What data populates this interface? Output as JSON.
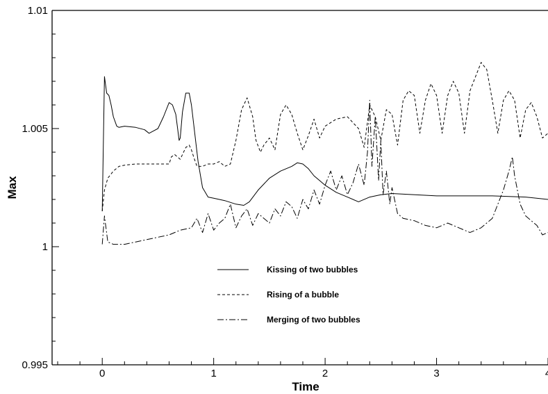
{
  "chart_data": {
    "type": "line",
    "xlabel": "Time",
    "ylabel": "Max",
    "xlim": [
      -0.45,
      4
    ],
    "ylim": [
      0.995,
      1.01
    ],
    "x_ticks": [
      0,
      1,
      2,
      3,
      4
    ],
    "x_tick_labels": [
      "0",
      "1",
      "2",
      "3",
      "4"
    ],
    "y_ticks": [
      0.995,
      1.0,
      1.005,
      1.01
    ],
    "y_tick_labels": [
      "0.995",
      "1",
      "1.005",
      "1.01"
    ],
    "grid": false,
    "legend_position": "center",
    "series": [
      {
        "name": "Kissing of two bubbles",
        "dash": "solid",
        "x": [
          0,
          0.02,
          0.04,
          0.06,
          0.08,
          0.1,
          0.13,
          0.15,
          0.2,
          0.3,
          0.38,
          0.42,
          0.46,
          0.5,
          0.55,
          0.6,
          0.63,
          0.66,
          0.69,
          0.7,
          0.72,
          0.75,
          0.78,
          0.8,
          0.83,
          0.86,
          0.9,
          0.95,
          1.0,
          1.05,
          1.1,
          1.2,
          1.27,
          1.32,
          1.4,
          1.5,
          1.6,
          1.7,
          1.75,
          1.8,
          1.85,
          1.9,
          1.95,
          2.0,
          2.1,
          2.2,
          2.3,
          2.4,
          2.5,
          2.6,
          3.0,
          3.5,
          3.8,
          4.0
        ],
        "values": [
          1.0015,
          1.0072,
          1.0065,
          1.0064,
          1.006,
          1.0055,
          1.0051,
          1.00505,
          1.0051,
          1.00505,
          1.00495,
          1.0048,
          1.0049,
          1.005,
          1.0055,
          1.0061,
          1.006,
          1.0056,
          1.0045,
          1.0046,
          1.0057,
          1.0065,
          1.0065,
          1.006,
          1.0048,
          1.0036,
          1.0025,
          1.0021,
          1.00205,
          1.002,
          1.00195,
          1.0018,
          1.00175,
          1.0019,
          1.0024,
          1.0029,
          1.0032,
          1.0034,
          1.00355,
          1.0035,
          1.0033,
          1.003,
          1.0028,
          1.0026,
          1.0023,
          1.0021,
          1.0019,
          1.0021,
          1.0022,
          1.00225,
          1.00215,
          1.00215,
          1.0021,
          1.002
        ]
      },
      {
        "name": "Rising of a bubble",
        "dash": "dashed",
        "x": [
          0,
          0.02,
          0.05,
          0.1,
          0.15,
          0.2,
          0.3,
          0.4,
          0.5,
          0.6,
          0.62,
          0.65,
          0.7,
          0.73,
          0.75,
          0.78,
          0.8,
          0.82,
          0.85,
          0.9,
          0.95,
          1.0,
          1.05,
          1.1,
          1.15,
          1.2,
          1.25,
          1.3,
          1.35,
          1.38,
          1.42,
          1.45,
          1.5,
          1.55,
          1.6,
          1.65,
          1.7,
          1.75,
          1.8,
          1.85,
          1.9,
          1.95,
          2.0,
          2.1,
          2.2,
          2.3,
          2.35,
          2.4,
          2.45,
          2.5,
          2.55,
          2.6,
          2.65,
          2.7,
          2.75,
          2.8,
          2.85,
          2.9,
          2.95,
          3.0,
          3.05,
          3.1,
          3.15,
          3.2,
          3.25,
          3.3,
          3.35,
          3.4,
          3.45,
          3.5,
          3.55,
          3.6,
          3.65,
          3.7,
          3.75,
          3.8,
          3.85,
          3.9,
          3.95,
          4.0
        ],
        "values": [
          1.0015,
          1.0024,
          1.0029,
          1.0032,
          1.0034,
          1.00345,
          1.0035,
          1.0035,
          1.0035,
          1.0035,
          1.0038,
          1.0039,
          1.0037,
          1.004,
          1.0042,
          1.0043,
          1.0041,
          1.0038,
          1.0034,
          1.0034,
          1.0035,
          1.0035,
          1.0036,
          1.0034,
          1.0035,
          1.0045,
          1.0058,
          1.0063,
          1.0055,
          1.0045,
          1.004,
          1.0043,
          1.0046,
          1.0041,
          1.0056,
          1.006,
          1.0056,
          1.0048,
          1.0041,
          1.0047,
          1.0054,
          1.0046,
          1.0051,
          1.0054,
          1.0055,
          1.005,
          1.0042,
          1.006,
          1.0055,
          1.0045,
          1.0058,
          1.0056,
          1.0043,
          1.0062,
          1.0066,
          1.0064,
          1.0048,
          1.0062,
          1.0069,
          1.0064,
          1.0048,
          1.0064,
          1.007,
          1.0065,
          1.0048,
          1.0066,
          1.0072,
          1.0078,
          1.0075,
          1.0062,
          1.0048,
          1.0062,
          1.0066,
          1.0062,
          1.0046,
          1.0058,
          1.0061,
          1.0055,
          1.0046,
          1.0048
        ]
      },
      {
        "name": "Merging of two bubbles",
        "dash": "dashdot",
        "x": [
          0,
          0.02,
          0.05,
          0.1,
          0.2,
          0.3,
          0.4,
          0.5,
          0.6,
          0.7,
          0.8,
          0.85,
          0.9,
          0.95,
          1.0,
          1.05,
          1.1,
          1.15,
          1.2,
          1.25,
          1.3,
          1.35,
          1.4,
          1.45,
          1.5,
          1.55,
          1.6,
          1.65,
          1.7,
          1.75,
          1.8,
          1.85,
          1.9,
          1.95,
          2.0,
          2.05,
          2.1,
          2.15,
          2.2,
          2.25,
          2.3,
          2.35,
          2.38,
          2.4,
          2.42,
          2.45,
          2.48,
          2.5,
          2.52,
          2.55,
          2.58,
          2.6,
          2.65,
          2.7,
          2.8,
          2.9,
          3.0,
          3.1,
          3.2,
          3.3,
          3.4,
          3.5,
          3.55,
          3.6,
          3.65,
          3.68,
          3.7,
          3.75,
          3.8,
          3.85,
          3.9,
          3.95,
          4.0
        ],
        "values": [
          1.0001,
          1.0013,
          1.0002,
          1.0001,
          1.0001,
          1.0002,
          1.0003,
          1.0004,
          1.0005,
          1.0007,
          1.0008,
          1.0012,
          1.0006,
          1.0014,
          1.0007,
          1.001,
          1.0012,
          1.0018,
          1.0008,
          1.0013,
          1.0016,
          1.0009,
          1.0014,
          1.0012,
          1.001,
          1.0016,
          1.0013,
          1.0019,
          1.0017,
          1.0012,
          1.002,
          1.0016,
          1.0024,
          1.0018,
          1.0026,
          1.0032,
          1.0024,
          1.003,
          1.0022,
          1.0027,
          1.0035,
          1.0026,
          1.004,
          1.0062,
          1.0034,
          1.0055,
          1.0028,
          1.0045,
          1.0022,
          1.0032,
          1.0018,
          1.0025,
          1.0014,
          1.0012,
          1.0011,
          1.0009,
          1.0008,
          1.001,
          1.0008,
          1.0006,
          1.0008,
          1.0012,
          1.0018,
          1.0024,
          1.0032,
          1.0038,
          1.003,
          1.0018,
          1.0013,
          1.0011,
          1.0009,
          1.0005,
          1.0006
        ]
      }
    ]
  }
}
